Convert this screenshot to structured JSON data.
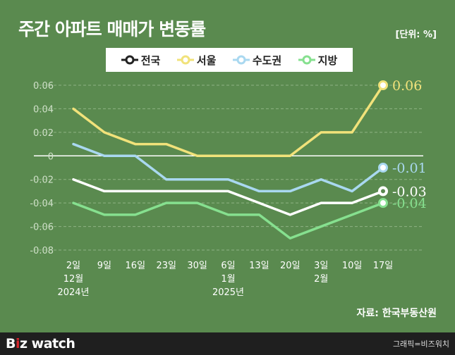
{
  "title": "주간 아파트 매매가 변동률",
  "unit": "[단위: %]",
  "source": "자료: 한국부동산원",
  "footer": {
    "logo_b": "B",
    "logo_dot": "i",
    "logo_rest": "z watch",
    "credit": "그래픽=비즈워치"
  },
  "chart_data": {
    "type": "line",
    "x": [
      "2일",
      "9일",
      "16일",
      "23일",
      "30일",
      "6일",
      "13일",
      "20일",
      "3일",
      "10일",
      "17일"
    ],
    "x_sublabels": [
      [
        "12월",
        "2024년"
      ],
      [],
      [],
      [],
      [],
      [
        "1월",
        "2025년"
      ],
      [],
      [],
      [
        "2월"
      ],
      [],
      []
    ],
    "ylim": [
      -0.08,
      0.06
    ],
    "yticks": [
      "0.06",
      "0.04",
      "0.02",
      "0",
      "-0.02",
      "-0.04",
      "-0.06",
      "-0.08"
    ],
    "ytick_values": [
      0.06,
      0.04,
      0.02,
      0,
      -0.02,
      -0.04,
      -0.06,
      -0.08
    ],
    "grid": "horizontal-dashed",
    "legend_position": "top-center",
    "series": [
      {
        "name": "전국",
        "color": "#ffffff",
        "values": [
          -0.02,
          -0.03,
          -0.03,
          -0.03,
          -0.03,
          -0.03,
          -0.04,
          -0.05,
          -0.04,
          -0.04,
          -0.03
        ],
        "end_label": "-0.03"
      },
      {
        "name": "서울",
        "color": "#f1e27a",
        "values": [
          0.04,
          0.02,
          0.01,
          0.01,
          0.0,
          0.0,
          0.0,
          0.0,
          0.02,
          0.02,
          0.06
        ],
        "end_label": "0.06"
      },
      {
        "name": "수도권",
        "color": "#a9d8f0",
        "values": [
          0.01,
          0.0,
          0.0,
          -0.02,
          -0.02,
          -0.02,
          -0.03,
          -0.03,
          -0.02,
          -0.03,
          -0.01
        ],
        "end_label": "-0.01"
      },
      {
        "name": "지방",
        "color": "#86e08f",
        "values": [
          -0.04,
          -0.05,
          -0.05,
          -0.04,
          -0.04,
          -0.05,
          -0.05,
          -0.07,
          -0.06,
          -0.05,
          -0.04
        ],
        "end_label": "-0.04"
      }
    ]
  }
}
